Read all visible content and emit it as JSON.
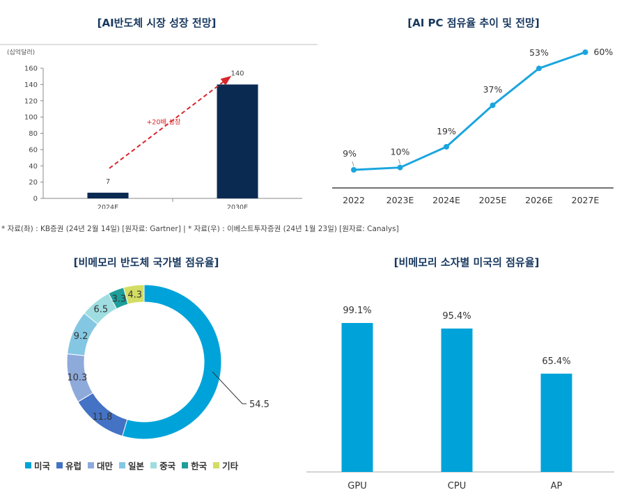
{
  "source_note": "* 자료(좌) : KB증권 (24년 2월 14일) [원자료: Gartner] | * 자료(우) : 이베스트투자증권 (24년 1월 23일) [원자료: Canalys]",
  "chart_data": [
    {
      "type": "bar",
      "title": "[AI반도체 시장 성장 전망]",
      "unit_label": "(십억달러)",
      "categories": [
        "2024E",
        "2030E"
      ],
      "values": [
        7,
        140
      ],
      "data_labels": [
        "7",
        "140"
      ],
      "ylim": [
        0,
        160
      ],
      "yticks": [
        0,
        20,
        40,
        60,
        80,
        100,
        120,
        140,
        160
      ],
      "ytick_labels": [
        "0",
        "20",
        "40",
        "60",
        "80",
        "100",
        "120",
        "140",
        "160"
      ],
      "annotation": "+20배 성장",
      "bar_color": "#0a2a52",
      "annotation_color": "#d9262c",
      "grid": false
    },
    {
      "type": "line",
      "title": "[AI PC 점유율 추이 및 전망]",
      "categories": [
        "2022",
        "2023E",
        "2024E",
        "2025E",
        "2026E",
        "2027E"
      ],
      "values": [
        9,
        10,
        19,
        37,
        53,
        60
      ],
      "data_labels": [
        "9%",
        "10%",
        "19%",
        "37%",
        "53%",
        "60%"
      ],
      "line_color": "#1aa5de"
    },
    {
      "type": "pie",
      "title": "[비메모리 반도체 국가별 점유율]",
      "labels": [
        "미국",
        "유럽",
        "대만",
        "일본",
        "중국",
        "한국",
        "기타"
      ],
      "values": [
        54.5,
        11.8,
        10.3,
        9.2,
        6.5,
        3.3,
        4.3
      ],
      "data_labels": [
        "54.5",
        "11.8",
        "10.3",
        "9.2",
        "6.5",
        "3.3",
        "4.3"
      ],
      "colors": [
        "#00a3d9",
        "#4472c4",
        "#8eaadb",
        "#84c7e3",
        "#9fdde0",
        "#1e9e9a",
        "#d3dd63"
      ],
      "legend_marker": "■"
    },
    {
      "type": "bar",
      "title": "[비메모리 소자별 미국의 점유율]",
      "categories": [
        "GPU",
        "CPU",
        "AP"
      ],
      "values": [
        99.1,
        95.4,
        65.4
      ],
      "data_labels": [
        "99.1%",
        "95.4%",
        "65.4%"
      ],
      "ylim": [
        0,
        100
      ],
      "bar_color": "#00a3d9"
    }
  ]
}
